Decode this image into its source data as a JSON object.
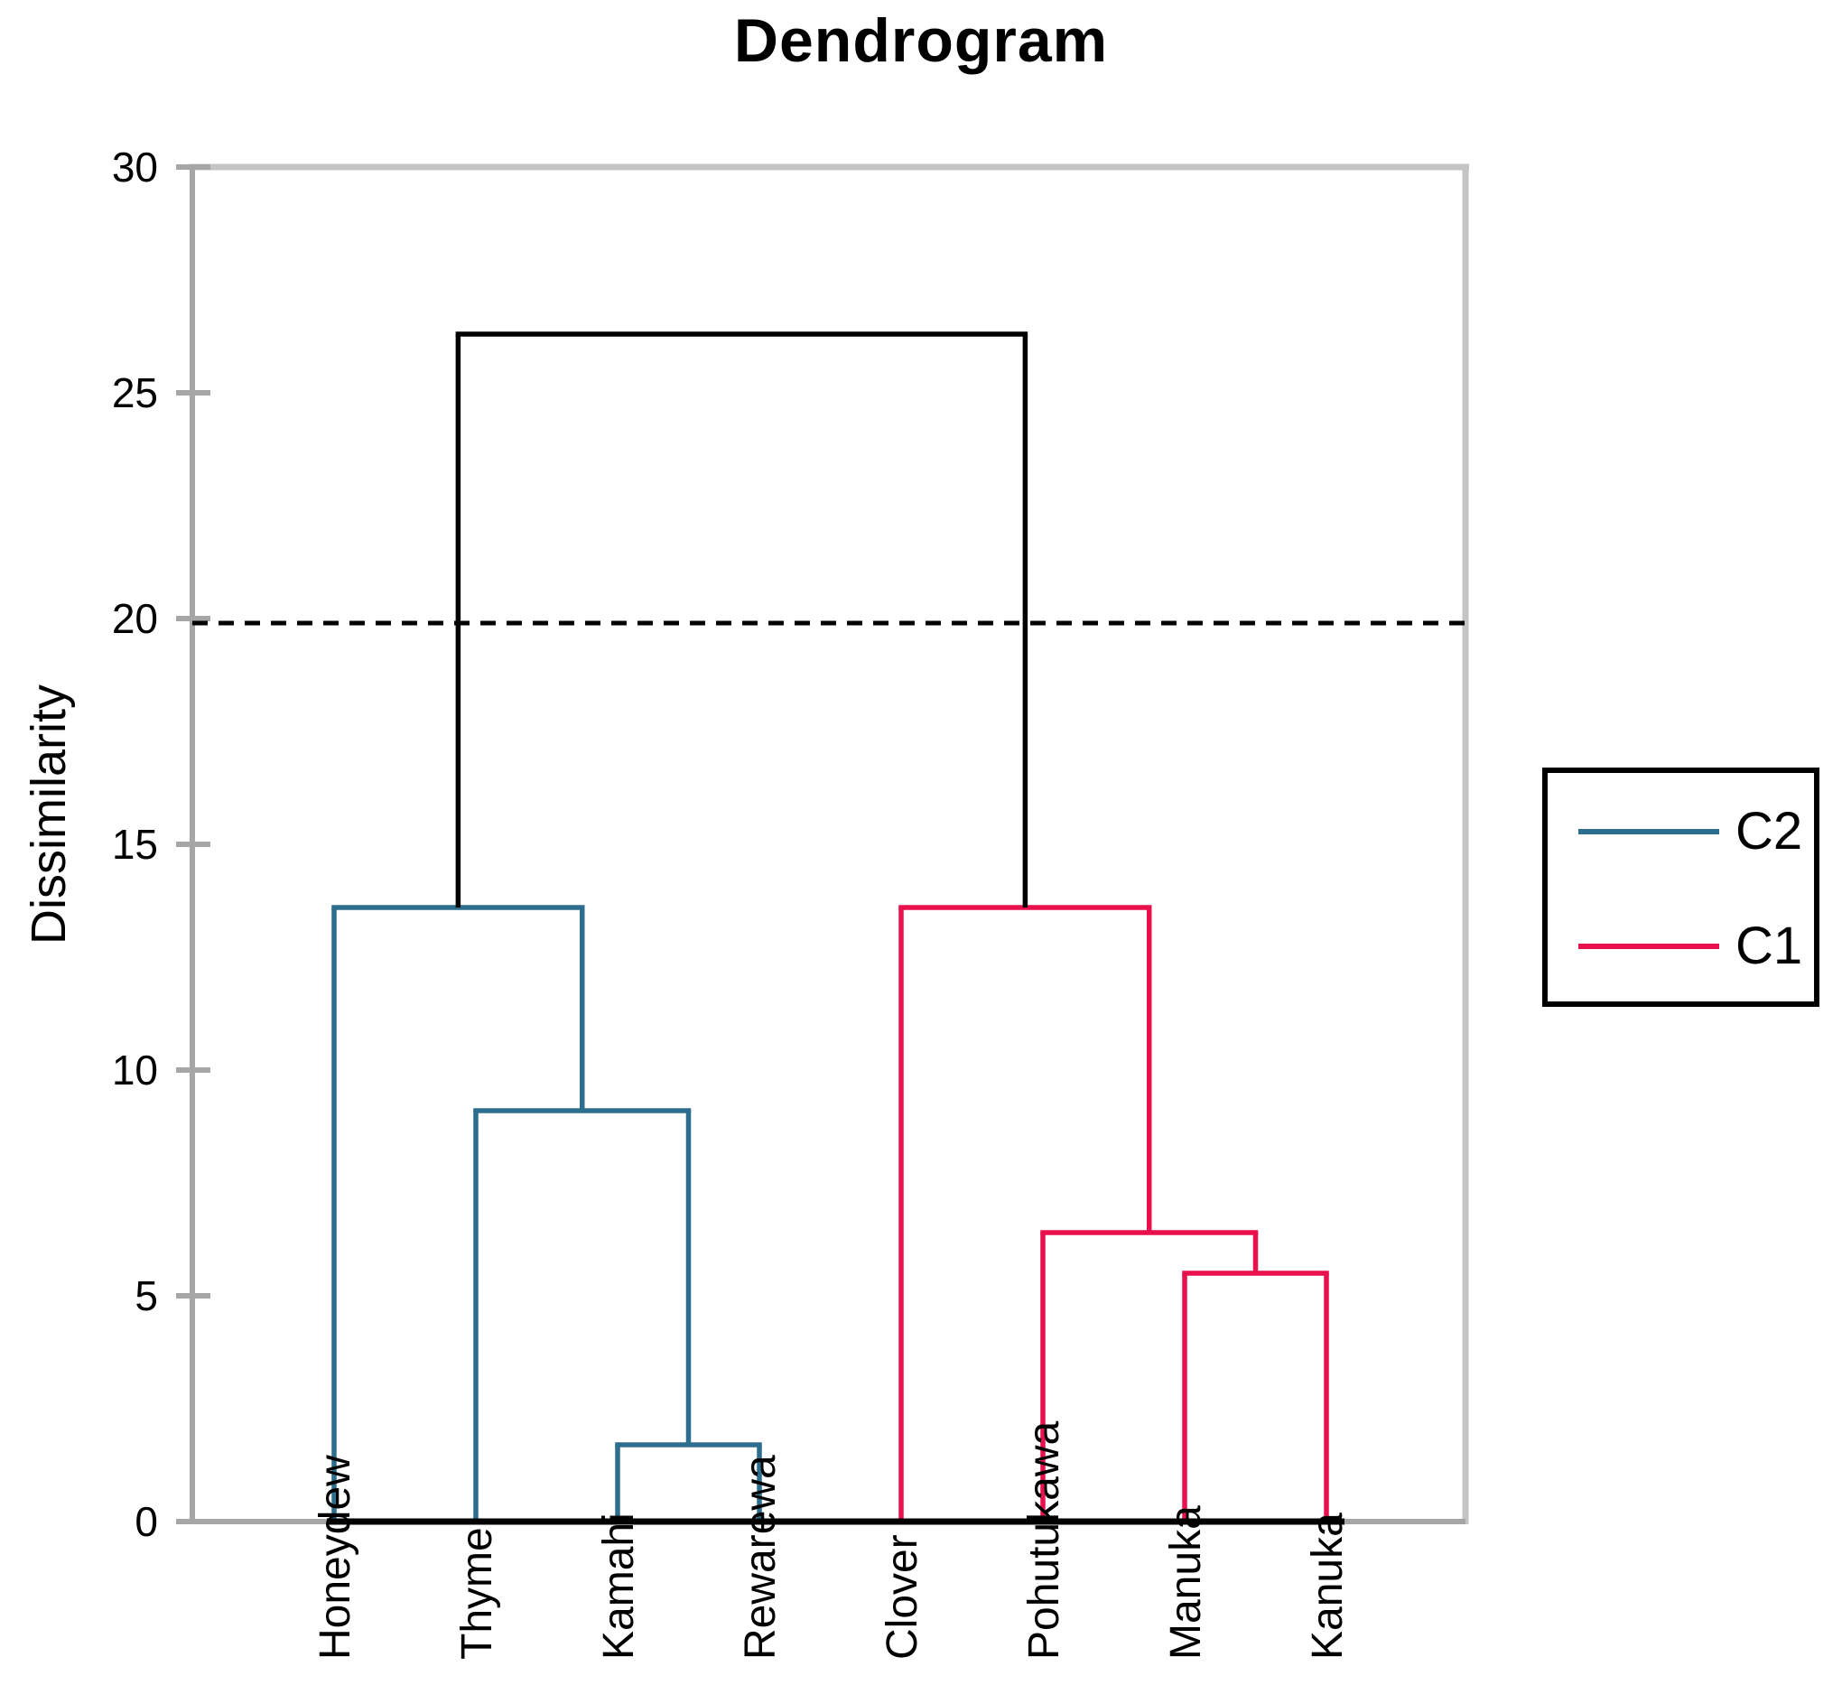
{
  "title": "Dendrogram",
  "y_axis": {
    "label": "Dissimilarity",
    "ticks": [
      0,
      5,
      10,
      15,
      20,
      25,
      30
    ],
    "min": 0,
    "max": 30
  },
  "legend": {
    "items": [
      {
        "label": "C2",
        "cluster": "c2"
      },
      {
        "label": "C1",
        "cluster": "c1"
      }
    ]
  },
  "colors": {
    "c2": "#2d6e8e",
    "c1": "#e8114d",
    "root": "#000000",
    "axis": "#a6a6a6",
    "border_light": "#c4c4c4",
    "baseline": "#000000",
    "cutoff": "#000000",
    "legend_border": "#000000"
  },
  "chart_data": {
    "type": "dendrogram",
    "orientation": "vertical",
    "title": "Dendrogram",
    "ylabel": "Dissimilarity",
    "ylim": [
      0,
      30
    ],
    "grid": false,
    "legend_position": "right-outside",
    "leaves": [
      "Honeydew",
      "Thyme",
      "Kamahi",
      "Rewarewa",
      "Clover",
      "Pohutukawa",
      "Manuka",
      "Kanuka"
    ],
    "merges": [
      {
        "id": "m1",
        "children": [
          "Kamahi",
          "Rewarewa"
        ],
        "height": 1.7,
        "cluster": "c2"
      },
      {
        "id": "m2",
        "children": [
          "Thyme",
          "m1"
        ],
        "height": 9.1,
        "cluster": "c2"
      },
      {
        "id": "m3",
        "children": [
          "Honeydew",
          "m2"
        ],
        "height": 13.6,
        "cluster": "c2"
      },
      {
        "id": "m4",
        "children": [
          "Manuka",
          "Kanuka"
        ],
        "height": 5.5,
        "cluster": "c1"
      },
      {
        "id": "m5",
        "children": [
          "Pohutukawa",
          "m4"
        ],
        "height": 6.4,
        "cluster": "c1"
      },
      {
        "id": "m6",
        "children": [
          "Clover",
          "m5"
        ],
        "height": 13.6,
        "cluster": "c1"
      },
      {
        "id": "root",
        "children": [
          "m3",
          "m6"
        ],
        "height": 26.3,
        "cluster": "root"
      }
    ],
    "clusters": [
      {
        "name": "C2",
        "members": [
          "Honeydew",
          "Thyme",
          "Kamahi",
          "Rewarewa"
        ]
      },
      {
        "name": "C1",
        "members": [
          "Clover",
          "Pohutukawa",
          "Manuka",
          "Kanuka"
        ]
      }
    ],
    "cutoff_line": {
      "value": 19.9,
      "style": "dashed"
    }
  }
}
